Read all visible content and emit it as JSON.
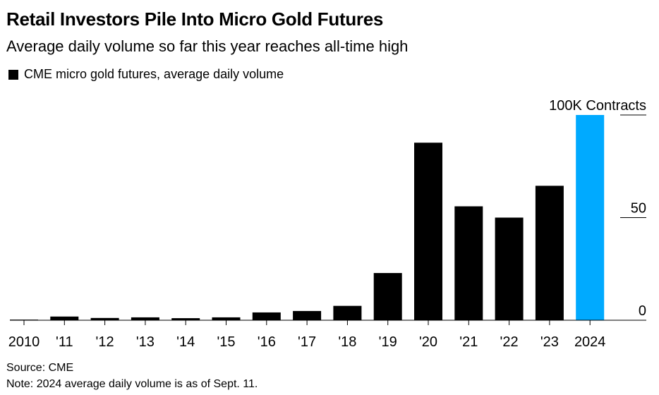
{
  "chart_data": {
    "type": "bar",
    "title": "Retail Investors Pile Into Micro Gold Futures",
    "subtitle": "Average daily volume so far this year reaches all-time high",
    "legend": "CME micro gold futures, average daily volume",
    "categories": [
      "2010",
      "'11",
      "'12",
      "'13",
      "'14",
      "'15",
      "'16",
      "'17",
      "'18",
      "'19",
      "'20",
      "'21",
      "'22",
      "'23",
      "2024"
    ],
    "values": [
      0.3,
      1.8,
      1.1,
      1.4,
      1.0,
      1.4,
      3.8,
      4.5,
      7.0,
      23.0,
      86.5,
      55.5,
      50.0,
      65.5,
      100.0
    ],
    "highlight_index": 14,
    "colors": {
      "default": "#000000",
      "highlight": "#00aaff"
    },
    "ylim": [
      0,
      100
    ],
    "yticks": [
      {
        "value": 0,
        "label": "0"
      },
      {
        "value": 50,
        "label": "50"
      },
      {
        "value": 100,
        "label": "100K Contracts"
      }
    ],
    "ylabel": "",
    "xlabel": "",
    "grid": false,
    "y_axis_side": "right"
  },
  "footer": {
    "source": "Source: CME",
    "note": "Note: 2024 average daily volume is as of Sept. 11."
  }
}
